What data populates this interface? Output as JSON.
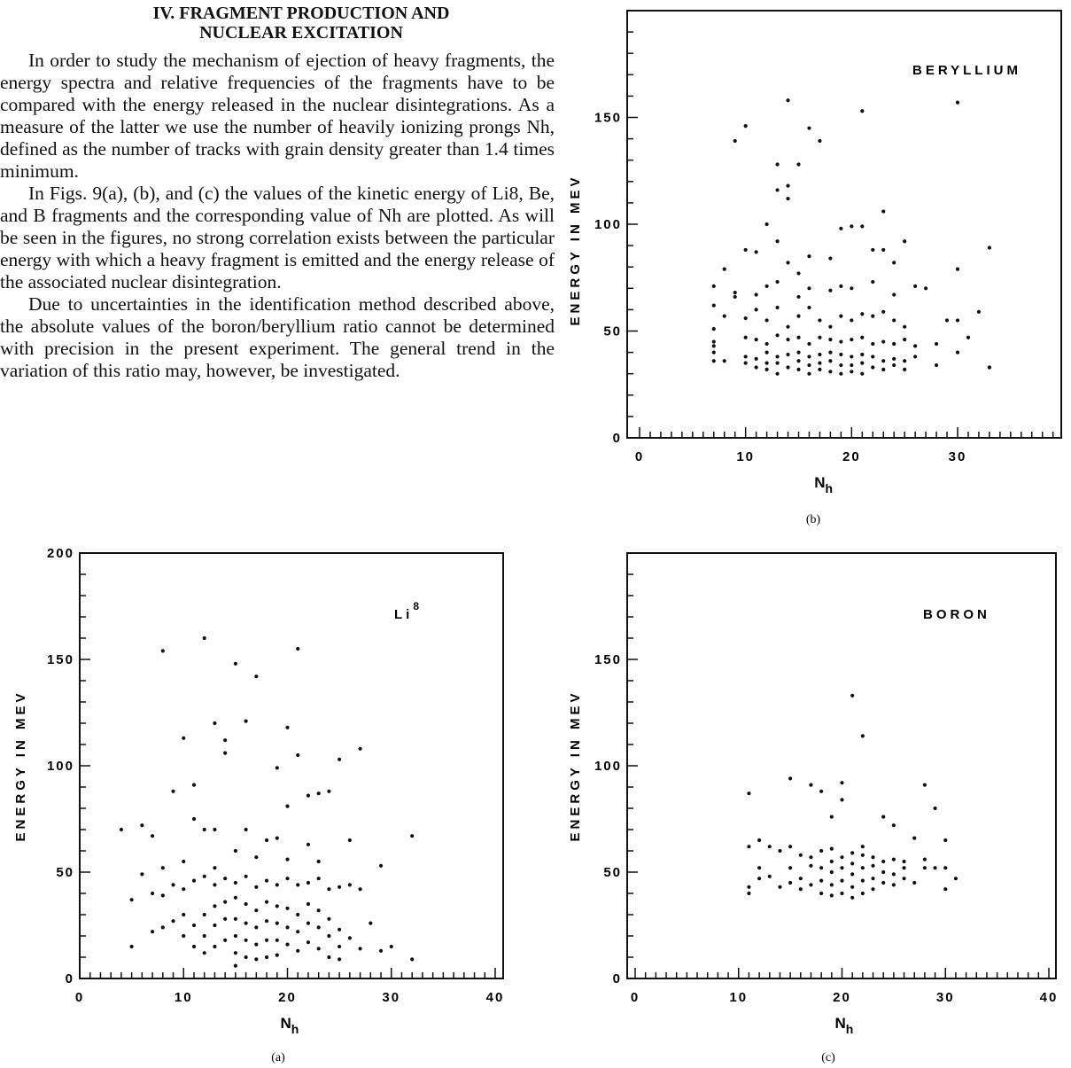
{
  "section_heading": {
    "line1": "IV. FRAGMENT PRODUCTION AND",
    "line2": "NUCLEAR EXCITATION"
  },
  "paragraphs": [
    "In order to study the mechanism of ejection of heavy fragments, the energy spectra and relative frequencies of the fragments have to be compared with the energy released in the nuclear disintegrations. As a measure of the latter we use the number of heavily ionizing prongs Nh, defined as the number of tracks with grain density greater than 1.4 times minimum.",
    "In Figs. 9(a), (b), and (c) the values of the kinetic energy of Li8, Be, and B fragments and the corresponding value of Nh are plotted. As will be seen in the figures, no strong correlation exists between the particular energy with which a heavy fragment is emitted and the energy release of the associated nuclear disintegration.",
    "Due to uncertainties in the identification method described above, the absolute values of the boron/beryllium ratio cannot be determined with precision in the present experiment. The general trend in the variation of this ratio may, however, be investigated."
  ],
  "chart_data": [
    {
      "type": "scatter",
      "panel_label": "(b)",
      "title": "BERYLLIUM",
      "xlabel": "N",
      "xlabel_sub": "h",
      "ylabel": "ENERGY IN MEV",
      "xlim": [
        0,
        40
      ],
      "ylim": [
        0,
        200
      ],
      "x_ticks": [
        "0",
        "10",
        "20",
        "30"
      ],
      "y_ticks": [
        "0",
        "50",
        "100",
        "150"
      ],
      "points": [
        [
          9,
          139
        ],
        [
          10,
          146
        ],
        [
          13,
          128
        ],
        [
          14,
          158
        ],
        [
          15,
          128
        ],
        [
          16,
          145
        ],
        [
          17,
          139
        ],
        [
          21,
          153
        ],
        [
          30,
          157
        ],
        [
          13,
          116
        ],
        [
          14,
          118
        ],
        [
          14,
          112
        ],
        [
          12,
          100
        ],
        [
          13,
          92
        ],
        [
          20,
          99
        ],
        [
          21,
          99
        ],
        [
          23,
          106
        ],
        [
          25,
          92
        ],
        [
          33,
          89
        ],
        [
          8,
          79
        ],
        [
          10,
          88
        ],
        [
          11,
          87
        ],
        [
          14,
          82
        ],
        [
          15,
          77
        ],
        [
          16,
          85
        ],
        [
          18,
          84
        ],
        [
          19,
          98
        ],
        [
          22,
          88
        ],
        [
          23,
          88
        ],
        [
          24,
          82
        ],
        [
          30,
          79
        ],
        [
          7,
          71
        ],
        [
          9,
          68
        ],
        [
          9,
          66
        ],
        [
          11,
          67
        ],
        [
          12,
          71
        ],
        [
          13,
          73
        ],
        [
          15,
          66
        ],
        [
          16,
          70
        ],
        [
          18,
          69
        ],
        [
          19,
          71
        ],
        [
          20,
          70
        ],
        [
          22,
          73
        ],
        [
          24,
          67
        ],
        [
          26,
          71
        ],
        [
          27,
          70
        ],
        [
          8,
          57
        ],
        [
          10,
          56
        ],
        [
          11,
          60
        ],
        [
          12,
          55
        ],
        [
          13,
          61
        ],
        [
          14,
          52
        ],
        [
          15,
          57
        ],
        [
          16,
          61
        ],
        [
          17,
          55
        ],
        [
          18,
          52
        ],
        [
          19,
          57
        ],
        [
          20,
          55
        ],
        [
          21,
          58
        ],
        [
          22,
          57
        ],
        [
          23,
          59
        ],
        [
          24,
          55
        ],
        [
          25,
          52
        ],
        [
          29,
          55
        ],
        [
          30,
          55
        ],
        [
          32,
          59
        ],
        [
          7,
          62
        ],
        [
          7,
          51
        ],
        [
          7,
          45
        ],
        [
          8,
          36
        ],
        [
          7,
          43
        ],
        [
          10,
          47
        ],
        [
          11,
          46
        ],
        [
          12,
          44
        ],
        [
          13,
          48
        ],
        [
          14,
          46
        ],
        [
          15,
          47
        ],
        [
          16,
          44
        ],
        [
          17,
          47
        ],
        [
          18,
          46
        ],
        [
          19,
          45
        ],
        [
          20,
          46
        ],
        [
          21,
          47
        ],
        [
          22,
          44
        ],
        [
          23,
          45
        ],
        [
          24,
          44
        ],
        [
          25,
          46
        ],
        [
          26,
          43
        ],
        [
          28,
          44
        ],
        [
          31,
          47
        ],
        [
          7,
          40
        ],
        [
          7,
          36
        ],
        [
          10,
          38
        ],
        [
          10,
          35
        ],
        [
          11,
          37
        ],
        [
          11,
          33
        ],
        [
          12,
          40
        ],
        [
          12,
          35
        ],
        [
          12,
          32
        ],
        [
          13,
          38
        ],
        [
          13,
          35
        ],
        [
          13,
          30
        ],
        [
          14,
          39
        ],
        [
          14,
          33
        ],
        [
          15,
          40
        ],
        [
          15,
          36
        ],
        [
          15,
          32
        ],
        [
          16,
          38
        ],
        [
          16,
          34
        ],
        [
          16,
          30
        ],
        [
          17,
          39
        ],
        [
          17,
          35
        ],
        [
          17,
          32
        ],
        [
          18,
          40
        ],
        [
          18,
          36
        ],
        [
          18,
          31
        ],
        [
          19,
          39
        ],
        [
          19,
          34
        ],
        [
          19,
          30
        ],
        [
          20,
          38
        ],
        [
          20,
          34
        ],
        [
          20,
          31
        ],
        [
          21,
          39
        ],
        [
          21,
          35
        ],
        [
          21,
          30
        ],
        [
          22,
          38
        ],
        [
          22,
          33
        ],
        [
          23,
          36
        ],
        [
          23,
          32
        ],
        [
          24,
          37
        ],
        [
          24,
          34
        ],
        [
          25,
          36
        ],
        [
          25,
          32
        ],
        [
          26,
          38
        ],
        [
          28,
          34
        ],
        [
          30,
          40
        ],
        [
          33,
          33
        ],
        [
          33,
          33
        ]
      ]
    },
    {
      "type": "scatter",
      "panel_label": "(a)",
      "title": "Li",
      "title_sup": "8",
      "xlabel": "N",
      "xlabel_sub": "h",
      "ylabel": "ENERGY IN MEV",
      "xlim": [
        0,
        40
      ],
      "ylim": [
        0,
        200
      ],
      "x_ticks": [
        "0",
        "10",
        "20",
        "30",
        "40"
      ],
      "y_ticks": [
        "0",
        "50",
        "100",
        "150",
        "200"
      ],
      "points": [
        [
          12,
          160
        ],
        [
          8,
          154
        ],
        [
          21,
          155
        ],
        [
          15,
          148
        ],
        [
          17,
          142
        ],
        [
          13,
          120
        ],
        [
          16,
          121
        ],
        [
          20,
          118
        ],
        [
          14,
          112
        ],
        [
          10,
          113
        ],
        [
          19,
          99
        ],
        [
          14,
          106
        ],
        [
          21,
          105
        ],
        [
          25,
          103
        ],
        [
          27,
          108
        ],
        [
          24,
          88
        ],
        [
          23,
          87
        ],
        [
          22,
          86
        ],
        [
          9,
          88
        ],
        [
          11,
          91
        ],
        [
          11,
          75
        ],
        [
          20,
          81
        ],
        [
          16,
          70
        ],
        [
          12,
          70
        ],
        [
          13,
          70
        ],
        [
          4,
          70
        ],
        [
          6,
          72
        ],
        [
          7,
          67
        ],
        [
          18,
          65
        ],
        [
          19,
          66
        ],
        [
          22,
          63
        ],
        [
          26,
          65
        ],
        [
          32,
          67
        ],
        [
          8,
          52
        ],
        [
          10,
          55
        ],
        [
          13,
          52
        ],
        [
          15,
          60
        ],
        [
          17,
          57
        ],
        [
          20,
          56
        ],
        [
          23,
          55
        ],
        [
          29,
          53
        ],
        [
          5,
          37
        ],
        [
          6,
          49
        ],
        [
          7,
          40
        ],
        [
          8,
          39
        ],
        [
          9,
          44
        ],
        [
          10,
          42
        ],
        [
          11,
          46
        ],
        [
          12,
          48
        ],
        [
          13,
          44
        ],
        [
          14,
          47
        ],
        [
          15,
          45
        ],
        [
          16,
          48
        ],
        [
          17,
          43
        ],
        [
          18,
          46
        ],
        [
          19,
          44
        ],
        [
          20,
          47
        ],
        [
          21,
          44
        ],
        [
          22,
          45
        ],
        [
          23,
          47
        ],
        [
          24,
          42
        ],
        [
          25,
          43
        ],
        [
          26,
          44
        ],
        [
          27,
          42
        ],
        [
          7,
          22
        ],
        [
          8,
          24
        ],
        [
          9,
          27
        ],
        [
          10,
          30
        ],
        [
          10,
          20
        ],
        [
          11,
          25
        ],
        [
          11,
          15
        ],
        [
          12,
          30
        ],
        [
          12,
          20
        ],
        [
          12,
          12
        ],
        [
          13,
          34
        ],
        [
          13,
          25
        ],
        [
          13,
          15
        ],
        [
          14,
          36
        ],
        [
          14,
          28
        ],
        [
          14,
          18
        ],
        [
          15,
          38
        ],
        [
          15,
          28
        ],
        [
          15,
          20
        ],
        [
          15,
          12
        ],
        [
          15,
          6
        ],
        [
          16,
          35
        ],
        [
          16,
          26
        ],
        [
          16,
          18
        ],
        [
          16,
          10
        ],
        [
          17,
          32
        ],
        [
          17,
          24
        ],
        [
          17,
          16
        ],
        [
          17,
          9
        ],
        [
          18,
          36
        ],
        [
          18,
          27
        ],
        [
          18,
          18
        ],
        [
          18,
          10
        ],
        [
          19,
          34
        ],
        [
          19,
          26
        ],
        [
          19,
          18
        ],
        [
          19,
          11
        ],
        [
          20,
          33
        ],
        [
          20,
          24
        ],
        [
          20,
          16
        ],
        [
          21,
          30
        ],
        [
          21,
          22
        ],
        [
          21,
          13
        ],
        [
          22,
          35
        ],
        [
          22,
          26
        ],
        [
          22,
          17
        ],
        [
          23,
          32
        ],
        [
          23,
          24
        ],
        [
          23,
          14
        ],
        [
          24,
          28
        ],
        [
          24,
          20
        ],
        [
          25,
          23
        ],
        [
          25,
          15
        ],
        [
          26,
          19
        ],
        [
          27,
          14
        ],
        [
          28,
          26
        ],
        [
          29,
          13
        ],
        [
          30,
          15
        ],
        [
          5,
          15
        ],
        [
          24,
          10
        ],
        [
          25,
          9
        ],
        [
          32,
          9
        ]
      ]
    },
    {
      "type": "scatter",
      "panel_label": "(c)",
      "title": "BORON",
      "xlabel": "N",
      "xlabel_sub": "h",
      "ylabel": "ENERGY IN MEV",
      "xlim": [
        0,
        40
      ],
      "ylim": [
        0,
        200
      ],
      "x_ticks": [
        "0",
        "10",
        "20",
        "30",
        "40"
      ],
      "y_ticks": [
        "0",
        "50",
        "100",
        "150"
      ],
      "points": [
        [
          21,
          133
        ],
        [
          22,
          114
        ],
        [
          15,
          94
        ],
        [
          17,
          91
        ],
        [
          18,
          88
        ],
        [
          20,
          92
        ],
        [
          11,
          87
        ],
        [
          28,
          91
        ],
        [
          24,
          76
        ],
        [
          19,
          76
        ],
        [
          20,
          84
        ],
        [
          25,
          72
        ],
        [
          29,
          80
        ],
        [
          27,
          66
        ],
        [
          30,
          65
        ],
        [
          11,
          62
        ],
        [
          12,
          65
        ],
        [
          13,
          62
        ],
        [
          14,
          60
        ],
        [
          15,
          62
        ],
        [
          16,
          58
        ],
        [
          17,
          57
        ],
        [
          18,
          60
        ],
        [
          19,
          61
        ],
        [
          20,
          57
        ],
        [
          21,
          59
        ],
        [
          22,
          62
        ],
        [
          23,
          57
        ],
        [
          24,
          55
        ],
        [
          25,
          56
        ],
        [
          26,
          55
        ],
        [
          28,
          56
        ],
        [
          29,
          52
        ],
        [
          30,
          52
        ],
        [
          11,
          40
        ],
        [
          11,
          43
        ],
        [
          12,
          47
        ],
        [
          12,
          52
        ],
        [
          13,
          48
        ],
        [
          14,
          43
        ],
        [
          15,
          45
        ],
        [
          15,
          52
        ],
        [
          16,
          42
        ],
        [
          16,
          47
        ],
        [
          17,
          44
        ],
        [
          17,
          53
        ],
        [
          18,
          40
        ],
        [
          18,
          46
        ],
        [
          18,
          52
        ],
        [
          19,
          39
        ],
        [
          19,
          44
        ],
        [
          19,
          50
        ],
        [
          19,
          55
        ],
        [
          20,
          40
        ],
        [
          20,
          46
        ],
        [
          20,
          52
        ],
        [
          21,
          38
        ],
        [
          21,
          43
        ],
        [
          21,
          49
        ],
        [
          21,
          54
        ],
        [
          22,
          40
        ],
        [
          22,
          46
        ],
        [
          22,
          52
        ],
        [
          22,
          58
        ],
        [
          23,
          42
        ],
        [
          23,
          47
        ],
        [
          23,
          53
        ],
        [
          24,
          45
        ],
        [
          24,
          50
        ],
        [
          25,
          44
        ],
        [
          25,
          49
        ],
        [
          26,
          47
        ],
        [
          26,
          52
        ],
        [
          27,
          45
        ],
        [
          28,
          52
        ],
        [
          30,
          42
        ],
        [
          31,
          47
        ]
      ]
    }
  ]
}
